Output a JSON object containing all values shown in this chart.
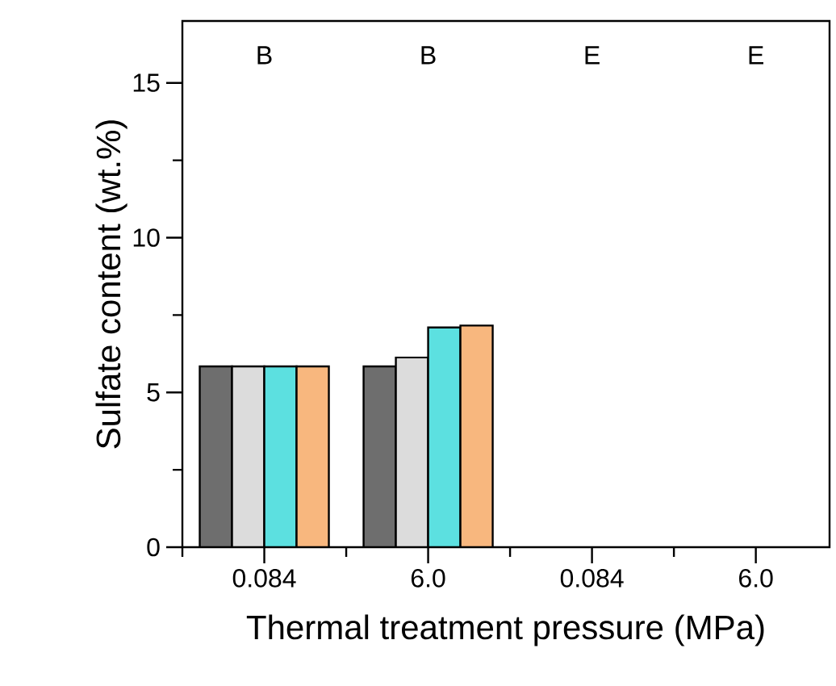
{
  "chart_data": {
    "type": "bar",
    "xlabel": "Thermal treatment pressure (MPa)",
    "ylabel": "Sulfate content (wt.%)",
    "categories": [
      "0.084",
      "6.0",
      "0.084",
      "6.0"
    ],
    "series": [
      {
        "color": "#6e6e6e",
        "values": [
          5.84,
          5.84,
          null,
          null
        ]
      },
      {
        "color": "#dcdcdc",
        "values": [
          5.84,
          6.13,
          null,
          null
        ]
      },
      {
        "color": "#5ce0e0",
        "values": [
          5.84,
          7.1,
          null,
          null
        ]
      },
      {
        "color": "#f8b77e",
        "values": [
          5.84,
          7.16,
          null,
          null
        ]
      }
    ],
    "ylim": [
      0,
      17
    ],
    "yticks": [
      0,
      5,
      10,
      15
    ],
    "annotations": [
      "B",
      "B",
      "E",
      "E"
    ]
  }
}
